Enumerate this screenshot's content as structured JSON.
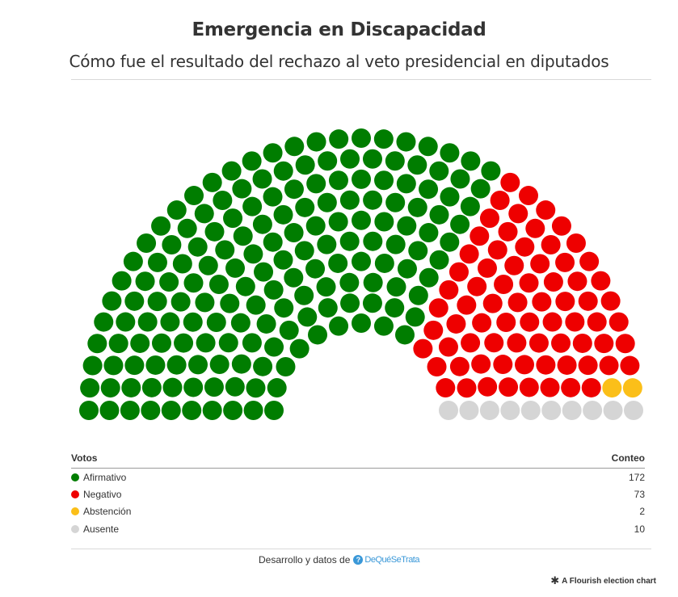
{
  "title": "Emergencia en Discapacidad",
  "subtitle": "Cómo fue el resultado del rechazo al veto presidencial en diputados",
  "legend": {
    "col_votes": "Votos",
    "col_count": "Conteo"
  },
  "chart_data": {
    "type": "parliament",
    "title": "Emergencia en Discapacidad",
    "subtitle": "Cómo fue el resultado del rechazo al veto presidencial en diputados",
    "total_seats": 257,
    "rows": 10,
    "parties": [
      {
        "name": "Afirmativo",
        "seats": 172,
        "color": "#007d00",
        "label_count": "172"
      },
      {
        "name": "Negativo",
        "seats": 73,
        "color": "#ee0000",
        "label_count": "73"
      },
      {
        "name": "Abstención",
        "seats": 2,
        "color": "#fbbf19",
        "label_count": "2"
      },
      {
        "name": "Ausente",
        "seats": 10,
        "color": "#d5d5d5",
        "label_count": "10"
      }
    ]
  },
  "credit": {
    "text": "Desarrollo y datos de",
    "logo_text": "DeQuéSeTrata",
    "logo_mark": "?"
  },
  "flourish": {
    "icon": "✱",
    "text": "A Flourish election chart"
  }
}
